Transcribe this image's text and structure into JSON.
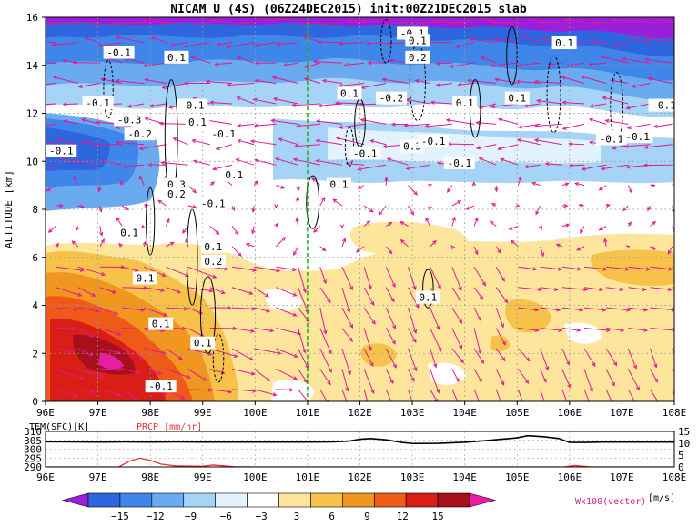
{
  "chart_data": [
    {
      "type": "heatmap",
      "title": "NICAM U (4S) (06Z24DEC2015) init:00Z21DEC2015 slab",
      "xlabel": "",
      "ylabel": "ALTITUDE [km]",
      "xlim": [
        96,
        108
      ],
      "ylim": [
        0,
        16
      ],
      "x_ticks": [
        "96E",
        "97E",
        "98E",
        "99E",
        "100E",
        "101E",
        "102E",
        "103E",
        "104E",
        "105E",
        "106E",
        "107E",
        "108E"
      ],
      "y_ticks": [
        "0",
        "2",
        "4",
        "6",
        "8",
        "10",
        "12",
        "14",
        "16"
      ],
      "grid": true,
      "marker_line_lon": 101,
      "contour_labels": [
        {
          "text": "-0.1",
          "x": 97.4,
          "y": 14.5
        },
        {
          "text": "0.1",
          "x": 98.5,
          "y": 14.3
        },
        {
          "text": "-0.1",
          "x": 103.0,
          "y": 15.3
        },
        {
          "text": "0.1",
          "x": 103.1,
          "y": 15.0
        },
        {
          "text": "0.2",
          "x": 103.1,
          "y": 14.3
        },
        {
          "text": "0.1",
          "x": 105.9,
          "y": 14.9
        },
        {
          "text": "-0.1",
          "x": 97.0,
          "y": 12.4
        },
        {
          "text": "-0.1",
          "x": 98.8,
          "y": 12.3
        },
        {
          "text": "-0.3",
          "x": 97.6,
          "y": 11.7
        },
        {
          "text": "-0.2",
          "x": 97.8,
          "y": 11.1
        },
        {
          "text": "0.1",
          "x": 98.9,
          "y": 11.6
        },
        {
          "text": "-0.1",
          "x": 99.4,
          "y": 11.1
        },
        {
          "text": "0.1",
          "x": 101.8,
          "y": 12.8
        },
        {
          "text": "-0.2",
          "x": 102.6,
          "y": 12.6
        },
        {
          "text": "0.1",
          "x": 104.0,
          "y": 12.4
        },
        {
          "text": "0.1",
          "x": 105.0,
          "y": 12.6
        },
        {
          "text": "-0.1",
          "x": 107.8,
          "y": 12.3
        },
        {
          "text": "-0.1",
          "x": 106.8,
          "y": 10.9
        },
        {
          "text": "-0.1",
          "x": 107.3,
          "y": 11.0
        },
        {
          "text": "-0.1",
          "x": 96.3,
          "y": 10.4
        },
        {
          "text": "-0.1",
          "x": 102.1,
          "y": 10.3
        },
        {
          "text": "0.3",
          "x": 103.0,
          "y": 10.6
        },
        {
          "text": "-0.1",
          "x": 103.4,
          "y": 10.8
        },
        {
          "text": "-0.1",
          "x": 103.9,
          "y": 9.9
        },
        {
          "text": "0.1",
          "x": 99.6,
          "y": 9.4
        },
        {
          "text": "0.3",
          "x": 98.5,
          "y": 9.0
        },
        {
          "text": "0.2",
          "x": 98.5,
          "y": 8.6
        },
        {
          "text": "0.1",
          "x": 101.6,
          "y": 9.0
        },
        {
          "text": "-0.1",
          "x": 99.2,
          "y": 8.2
        },
        {
          "text": "0.1",
          "x": 97.6,
          "y": 7.0
        },
        {
          "text": "0.1",
          "x": 99.2,
          "y": 6.4
        },
        {
          "text": "0.2",
          "x": 99.2,
          "y": 5.8
        },
        {
          "text": "0.1",
          "x": 97.9,
          "y": 5.1
        },
        {
          "text": "0.1",
          "x": 103.3,
          "y": 4.3
        },
        {
          "text": "0.1",
          "x": 98.2,
          "y": 3.2
        },
        {
          "text": "0.1",
          "x": 99.0,
          "y": 2.4
        },
        {
          "text": "-0.1",
          "x": 98.2,
          "y": 0.6
        }
      ]
    },
    {
      "type": "line",
      "left_label": "TEM(SFC)[K]",
      "right_label": "PRCP [mm/hr]",
      "x_ticks": [
        "96E",
        "97E",
        "98E",
        "99E",
        "100E",
        "101E",
        "102E",
        "103E",
        "104E",
        "105E",
        "106E",
        "107E",
        "108E"
      ],
      "y_left_ticks": [
        "290",
        "295",
        "300",
        "305",
        "310"
      ],
      "y_right_ticks": [
        "0",
        "5",
        "10",
        "15"
      ],
      "ylim_left": [
        290,
        310
      ],
      "ylim_right": [
        0,
        15
      ],
      "series": [
        {
          "name": "TEM(SFC)[K]",
          "color": "#000000",
          "x": [
            96,
            96.5,
            97,
            97.5,
            98,
            98.5,
            99,
            99.5,
            100,
            100.5,
            101,
            101.5,
            101.8,
            102,
            102.2,
            102.5,
            102.8,
            103,
            103.5,
            104,
            104.3,
            104.7,
            105,
            105.2,
            105.5,
            105.8,
            106,
            106.3,
            106.6,
            107,
            107.5,
            108
          ],
          "values": [
            304.2,
            304.1,
            304.0,
            304.1,
            304.0,
            304.1,
            304.0,
            304.0,
            304.0,
            304.0,
            304.0,
            304.1,
            304.6,
            305.6,
            306.0,
            305.3,
            303.8,
            303.2,
            303.3,
            303.9,
            304.6,
            305.6,
            306.4,
            307.6,
            307.0,
            306.0,
            303.8,
            303.8,
            304.0,
            304.0,
            304.0,
            304.0
          ]
        },
        {
          "name": "PRCP [mm/hr]",
          "color": "#e8303a",
          "x": [
            96,
            97,
            97.4,
            97.6,
            97.8,
            98.0,
            98.2,
            98.5,
            99.0,
            99.2,
            99.6,
            100,
            102,
            103,
            104,
            105,
            105.9,
            106.1,
            106.4,
            107,
            108
          ],
          "values": [
            0,
            0,
            0,
            2.4,
            3.7,
            2.8,
            1.2,
            0.4,
            0.3,
            0.8,
            0.1,
            0,
            0,
            0,
            0,
            0,
            0,
            0.6,
            0,
            0,
            0
          ]
        }
      ]
    }
  ],
  "colorbar": {
    "ticks": [
      "−15",
      "−12",
      "−9",
      "−6",
      "−3",
      "3",
      "6",
      "9",
      "12",
      "15"
    ],
    "unit": "[m/s]",
    "vector_label": "Wx100(vector)",
    "colors": [
      "#9b1fd8",
      "#2e66e0",
      "#3f86ea",
      "#69aaf0",
      "#a6d4f7",
      "#e2f3fd",
      "#ffffff",
      "#fde59c",
      "#f6c24a",
      "#f1961f",
      "#ef5a18",
      "#d91e15",
      "#a5101a",
      "#e51ea4"
    ]
  }
}
